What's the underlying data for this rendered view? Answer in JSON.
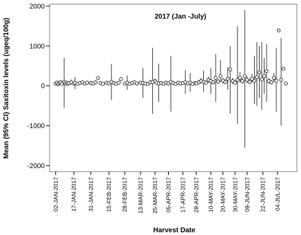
{
  "chart_data": {
    "type": "scatter",
    "title": "2017 (Jan -July)",
    "xlabel": "Harvest Date",
    "ylabel": "Mean (95% CI) Saxitoxin levels (ugeq/100g)",
    "ylim": [
      -2150,
      2050
    ],
    "yticks": [
      -2000,
      -1000,
      0,
      1000,
      2000
    ],
    "xlim": [
      "2016-12-28",
      "2017-07-20"
    ],
    "x_tick_labels": [
      {
        "date": "2017-01-02",
        "label": "02-JAN-2017"
      },
      {
        "date": "2017-01-17",
        "label": "17-JAN-2017"
      },
      {
        "date": "2017-01-31",
        "label": "31-JAN-2017"
      },
      {
        "date": "2017-02-15",
        "label": "15-FEB-2017"
      },
      {
        "date": "2017-02-28",
        "label": "28-FEB-2017"
      },
      {
        "date": "2017-03-13",
        "label": "13-MAR-2017"
      },
      {
        "date": "2017-03-25",
        "label": "25-MAR-2017"
      },
      {
        "date": "2017-04-05",
        "label": "05-APR-2017"
      },
      {
        "date": "2017-04-17",
        "label": "17-APR-2017"
      },
      {
        "date": "2017-04-28",
        "label": "28-APR-2017"
      },
      {
        "date": "2017-05-10",
        "label": "10-MAY-2017"
      },
      {
        "date": "2017-05-20",
        "label": "20-MAY-2017"
      },
      {
        "date": "2017-05-30",
        "label": "30-MAY-2017"
      },
      {
        "date": "2017-06-09",
        "label": "09-JUN-2017"
      },
      {
        "date": "2017-06-22",
        "label": "22-JUN-2017"
      },
      {
        "date": "2017-07-04",
        "label": "04-JUL-2017"
      }
    ],
    "grid": false,
    "marker": "open-circle",
    "points": [
      {
        "x": "2017-01-02",
        "y": 60,
        "lo": 20,
        "hi": 100
      },
      {
        "x": "2017-01-03",
        "y": 80,
        "lo": 30,
        "hi": 130
      },
      {
        "x": "2017-01-04",
        "y": 40,
        "lo": 10,
        "hi": 70
      },
      {
        "x": "2017-01-05",
        "y": 70,
        "lo": 30,
        "hi": 110
      },
      {
        "x": "2017-01-06",
        "y": 90,
        "lo": 40,
        "hi": 150
      },
      {
        "x": "2017-01-07",
        "y": 50,
        "lo": 20,
        "hi": 80
      },
      {
        "x": "2017-01-09",
        "y": 100,
        "lo": -550,
        "hi": 700
      },
      {
        "x": "2017-01-10",
        "y": 60,
        "lo": 20,
        "hi": 100
      },
      {
        "x": "2017-01-11",
        "y": 80,
        "lo": 30,
        "hi": 130
      },
      {
        "x": "2017-01-12",
        "y": 50,
        "lo": 20,
        "hi": 90
      },
      {
        "x": "2017-01-13",
        "y": 70,
        "lo": 30,
        "hi": 110
      },
      {
        "x": "2017-01-15",
        "y": 90,
        "lo": 30,
        "hi": 160
      },
      {
        "x": "2017-01-17",
        "y": 60,
        "lo": 20,
        "hi": 100
      },
      {
        "x": "2017-01-18",
        "y": 80,
        "lo": -80,
        "hi": 220
      },
      {
        "x": "2017-01-20",
        "y": 50,
        "lo": 20,
        "hi": 90
      },
      {
        "x": "2017-01-22",
        "y": 70,
        "lo": 30,
        "hi": 110
      },
      {
        "x": "2017-01-24",
        "y": 90,
        "lo": 40,
        "hi": 140
      },
      {
        "x": "2017-01-26",
        "y": 60,
        "lo": 20,
        "hi": 100
      },
      {
        "x": "2017-01-28",
        "y": 80,
        "lo": 30,
        "hi": 130
      },
      {
        "x": "2017-01-31",
        "y": 70,
        "lo": 20,
        "hi": 120
      },
      {
        "x": "2017-02-02",
        "y": 60,
        "lo": 20,
        "hi": 100
      },
      {
        "x": "2017-02-04",
        "y": 90,
        "lo": 40,
        "hi": 150
      },
      {
        "x": "2017-02-06",
        "y": 200,
        "lo": 190,
        "hi": 210
      },
      {
        "x": "2017-02-08",
        "y": 70,
        "lo": 30,
        "hi": 110
      },
      {
        "x": "2017-02-10",
        "y": 50,
        "lo": 20,
        "hi": 80
      },
      {
        "x": "2017-02-13",
        "y": 80,
        "lo": 30,
        "hi": 130
      },
      {
        "x": "2017-02-15",
        "y": 60,
        "lo": 20,
        "hi": 100
      },
      {
        "x": "2017-02-17",
        "y": 100,
        "lo": -350,
        "hi": 550
      },
      {
        "x": "2017-02-19",
        "y": 70,
        "lo": 30,
        "hi": 110
      },
      {
        "x": "2017-02-21",
        "y": 50,
        "lo": 20,
        "hi": 90
      },
      {
        "x": "2017-02-23",
        "y": 80,
        "lo": 30,
        "hi": 130
      },
      {
        "x": "2017-02-25",
        "y": 170,
        "lo": 160,
        "hi": 180
      },
      {
        "x": "2017-02-28",
        "y": 60,
        "lo": 20,
        "hi": 100
      },
      {
        "x": "2017-03-02",
        "y": 80,
        "lo": -100,
        "hi": 260
      },
      {
        "x": "2017-03-04",
        "y": 50,
        "lo": 20,
        "hi": 90
      },
      {
        "x": "2017-03-06",
        "y": 70,
        "lo": 30,
        "hi": 110
      },
      {
        "x": "2017-03-08",
        "y": 90,
        "lo": 40,
        "hi": 150
      },
      {
        "x": "2017-03-10",
        "y": 60,
        "lo": 20,
        "hi": 100
      },
      {
        "x": "2017-03-13",
        "y": 80,
        "lo": 30,
        "hi": 130
      },
      {
        "x": "2017-03-15",
        "y": 70,
        "lo": -300,
        "hi": 450
      },
      {
        "x": "2017-03-17",
        "y": 60,
        "lo": 20,
        "hi": 100
      },
      {
        "x": "2017-03-19",
        "y": 50,
        "lo": 20,
        "hi": 90
      },
      {
        "x": "2017-03-21",
        "y": 90,
        "lo": 40,
        "hi": 150
      },
      {
        "x": "2017-03-23",
        "y": 100,
        "lo": -700,
        "hi": 950
      },
      {
        "x": "2017-03-25",
        "y": 120,
        "lo": 60,
        "hi": 180
      },
      {
        "x": "2017-03-26",
        "y": 80,
        "lo": 30,
        "hi": 130
      },
      {
        "x": "2017-03-28",
        "y": 60,
        "lo": -400,
        "hi": 560
      },
      {
        "x": "2017-03-30",
        "y": 70,
        "lo": 30,
        "hi": 110
      },
      {
        "x": "2017-04-01",
        "y": 50,
        "lo": 20,
        "hi": 90
      },
      {
        "x": "2017-04-03",
        "y": 80,
        "lo": 30,
        "hi": 130
      },
      {
        "x": "2017-04-05",
        "y": 60,
        "lo": 20,
        "hi": 100
      },
      {
        "x": "2017-04-07",
        "y": 100,
        "lo": -650,
        "hi": 750
      },
      {
        "x": "2017-04-09",
        "y": 70,
        "lo": 30,
        "hi": 110
      },
      {
        "x": "2017-04-11",
        "y": 50,
        "lo": 20,
        "hi": 90
      },
      {
        "x": "2017-04-13",
        "y": 80,
        "lo": 30,
        "hi": 130
      },
      {
        "x": "2017-04-15",
        "y": 60,
        "lo": 20,
        "hi": 100
      },
      {
        "x": "2017-04-17",
        "y": 70,
        "lo": 30,
        "hi": 110
      },
      {
        "x": "2017-04-19",
        "y": 90,
        "lo": -200,
        "hi": 400
      },
      {
        "x": "2017-04-21",
        "y": 60,
        "lo": 20,
        "hi": 100
      },
      {
        "x": "2017-04-23",
        "y": 80,
        "lo": -150,
        "hi": 320
      },
      {
        "x": "2017-04-25",
        "y": 50,
        "lo": 20,
        "hi": 90
      },
      {
        "x": "2017-04-27",
        "y": 70,
        "lo": 30,
        "hi": 110
      },
      {
        "x": "2017-04-28",
        "y": 60,
        "lo": 20,
        "hi": 100
      },
      {
        "x": "2017-04-30",
        "y": 90,
        "lo": 40,
        "hi": 150
      },
      {
        "x": "2017-05-02",
        "y": 120,
        "lo": 60,
        "hi": 200
      },
      {
        "x": "2017-05-04",
        "y": 100,
        "lo": -150,
        "hi": 380
      },
      {
        "x": "2017-05-06",
        "y": 80,
        "lo": 30,
        "hi": 130
      },
      {
        "x": "2017-05-08",
        "y": 150,
        "lo": 80,
        "hi": 230
      },
      {
        "x": "2017-05-10",
        "y": 120,
        "lo": -200,
        "hi": 450
      },
      {
        "x": "2017-05-12",
        "y": 90,
        "lo": 40,
        "hi": 150
      },
      {
        "x": "2017-05-14",
        "y": 200,
        "lo": -400,
        "hi": 800
      },
      {
        "x": "2017-05-16",
        "y": 110,
        "lo": 50,
        "hi": 180
      },
      {
        "x": "2017-05-18",
        "y": 250,
        "lo": 100,
        "hi": 650
      },
      {
        "x": "2017-05-20",
        "y": 130,
        "lo": 60,
        "hi": 200
      },
      {
        "x": "2017-05-22",
        "y": 100,
        "lo": 40,
        "hi": 170
      },
      {
        "x": "2017-05-24",
        "y": 180,
        "lo": -100,
        "hi": 470
      },
      {
        "x": "2017-05-26",
        "y": 410,
        "lo": -700,
        "hi": 1000
      },
      {
        "x": "2017-05-28",
        "y": 120,
        "lo": 50,
        "hi": 200
      },
      {
        "x": "2017-05-30",
        "y": 80,
        "lo": 30,
        "hi": 140
      },
      {
        "x": "2017-06-01",
        "y": 150,
        "lo": -950,
        "hi": 1500
      },
      {
        "x": "2017-06-03",
        "y": 200,
        "lo": 80,
        "hi": 350
      },
      {
        "x": "2017-06-05",
        "y": 120,
        "lo": 50,
        "hi": 200
      },
      {
        "x": "2017-06-07",
        "y": 250,
        "lo": -1550,
        "hi": 1900
      },
      {
        "x": "2017-06-09",
        "y": 150,
        "lo": 70,
        "hi": 240
      },
      {
        "x": "2017-06-11",
        "y": 100,
        "lo": 40,
        "hi": 170
      },
      {
        "x": "2017-06-13",
        "y": 180,
        "lo": 80,
        "hi": 300
      },
      {
        "x": "2017-06-15",
        "y": 130,
        "lo": -450,
        "hi": 750
      },
      {
        "x": "2017-06-17",
        "y": 220,
        "lo": -500,
        "hi": 1100
      },
      {
        "x": "2017-06-19",
        "y": 340,
        "lo": -300,
        "hi": 1000
      },
      {
        "x": "2017-06-21",
        "y": 160,
        "lo": -600,
        "hi": 1100
      },
      {
        "x": "2017-06-23",
        "y": 250,
        "lo": -200,
        "hi": 700
      },
      {
        "x": "2017-06-25",
        "y": 370,
        "lo": -400,
        "hi": 1050
      },
      {
        "x": "2017-06-27",
        "y": 120,
        "lo": 50,
        "hi": 200
      },
      {
        "x": "2017-06-29",
        "y": 90,
        "lo": 40,
        "hi": 150
      },
      {
        "x": "2017-07-01",
        "y": 200,
        "lo": 100,
        "hi": 320
      },
      {
        "x": "2017-07-03",
        "y": 130,
        "lo": -650,
        "hi": 950
      },
      {
        "x": "2017-07-05",
        "y": 1390,
        "lo": 1380,
        "hi": 1400
      },
      {
        "x": "2017-07-07",
        "y": 150,
        "lo": -1000,
        "hi": 1200
      },
      {
        "x": "2017-07-09",
        "y": 430,
        "lo": 420,
        "hi": 440
      },
      {
        "x": "2017-07-11",
        "y": 60,
        "lo": 20,
        "hi": 100
      }
    ]
  }
}
